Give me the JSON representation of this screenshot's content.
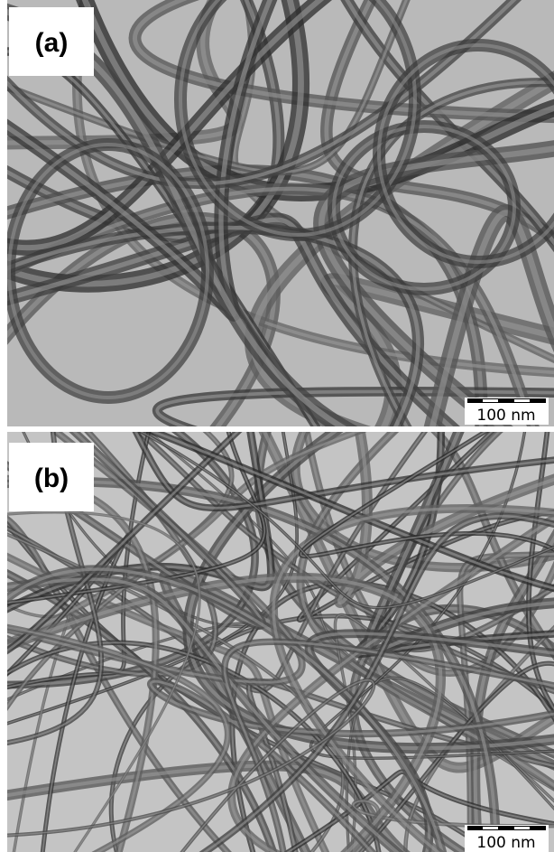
{
  "panels": [
    {
      "label": "(a)",
      "scale_bar": "100 nm"
    },
    {
      "label": "(b)",
      "scale_bar": "100 nm"
    }
  ]
}
